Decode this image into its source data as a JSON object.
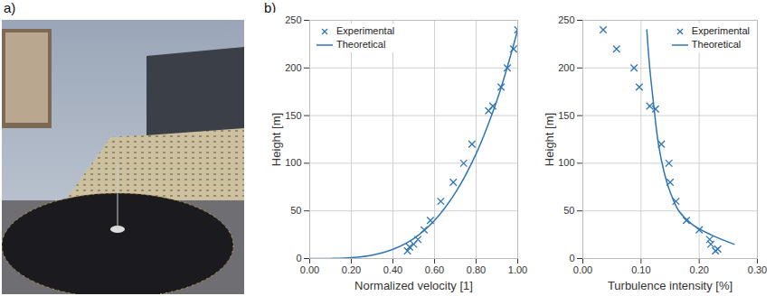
{
  "panel_labels": [
    "a)",
    "b)"
  ],
  "chart_data": [
    {
      "type": "scatter",
      "xlabel": "Normalized velocity [1]",
      "ylabel": "Height [m]",
      "xlim": [
        0,
        1
      ],
      "ylim": [
        0,
        250
      ],
      "xticks": [
        {
          "value": 0,
          "label": "0.00"
        },
        {
          "value": 0.2,
          "label": "0.20"
        },
        {
          "value": 0.4,
          "label": "0.40"
        },
        {
          "value": 0.6,
          "label": "0.60"
        },
        {
          "value": 0.8,
          "label": "0.80"
        },
        {
          "value": 1,
          "label": "1.00"
        }
      ],
      "yticks": [
        0,
        50,
        100,
        150,
        200,
        250
      ],
      "grid": true,
      "legend": "top-left",
      "series": [
        {
          "name": "Experimental",
          "type": "scatter",
          "marker": "x",
          "color": "#2e75b6",
          "x": [
            0.47,
            0.48,
            0.5,
            0.52,
            0.55,
            0.58,
            0.63,
            0.69,
            0.74,
            0.78,
            0.86,
            0.88,
            0.92,
            0.95,
            0.98,
            1.0
          ],
          "values": [
            8,
            12,
            15,
            20,
            30,
            40,
            60,
            80,
            100,
            120,
            155,
            160,
            180,
            200,
            220,
            240
          ]
        },
        {
          "name": "Theoretical",
          "type": "line",
          "line_style": "solid",
          "color": "#2e75b6",
          "x": [
            0,
            0.1,
            0.2,
            0.3,
            0.4,
            0.5,
            0.6,
            0.7,
            0.8,
            0.9,
            0.95,
            1.0
          ],
          "values": [
            0,
            0.1,
            0.9,
            3.6,
            9.7,
            21,
            40,
            69,
            110,
            166,
            201,
            240
          ]
        }
      ]
    },
    {
      "type": "scatter",
      "xlabel": "Turbulence intensity [%]",
      "ylabel": "Height [m]",
      "xlim": [
        0,
        0.3
      ],
      "ylim": [
        0,
        250
      ],
      "xticks": [
        {
          "value": 0,
          "label": "0.00"
        },
        {
          "value": 0.1,
          "label": "0.10"
        },
        {
          "value": 0.2,
          "label": "0.20"
        },
        {
          "value": 0.3,
          "label": "0.30"
        }
      ],
      "yticks": [
        0,
        50,
        100,
        150,
        200,
        250
      ],
      "grid": true,
      "legend": "top-right",
      "series": [
        {
          "name": "Experimental",
          "type": "scatter",
          "marker": "x",
          "color": "#2e75b6",
          "x": [
            0.035,
            0.058,
            0.088,
            0.097,
            0.115,
            0.125,
            0.135,
            0.148,
            0.15,
            0.16,
            0.178,
            0.2,
            0.218,
            0.22,
            0.228,
            0.232
          ],
          "values": [
            240,
            220,
            200,
            180,
            160,
            157,
            120,
            100,
            80,
            60,
            40,
            30,
            20,
            15,
            8,
            10
          ]
        },
        {
          "name": "Theoretical",
          "type": "line",
          "line_style": "solid",
          "color": "#2e75b6",
          "x": [
            0.11,
            0.115,
            0.122,
            0.13,
            0.14,
            0.15,
            0.165,
            0.19,
            0.22,
            0.26
          ],
          "values": [
            240,
            200,
            160,
            120,
            90,
            70,
            50,
            35,
            25,
            15
          ]
        }
      ]
    }
  ]
}
